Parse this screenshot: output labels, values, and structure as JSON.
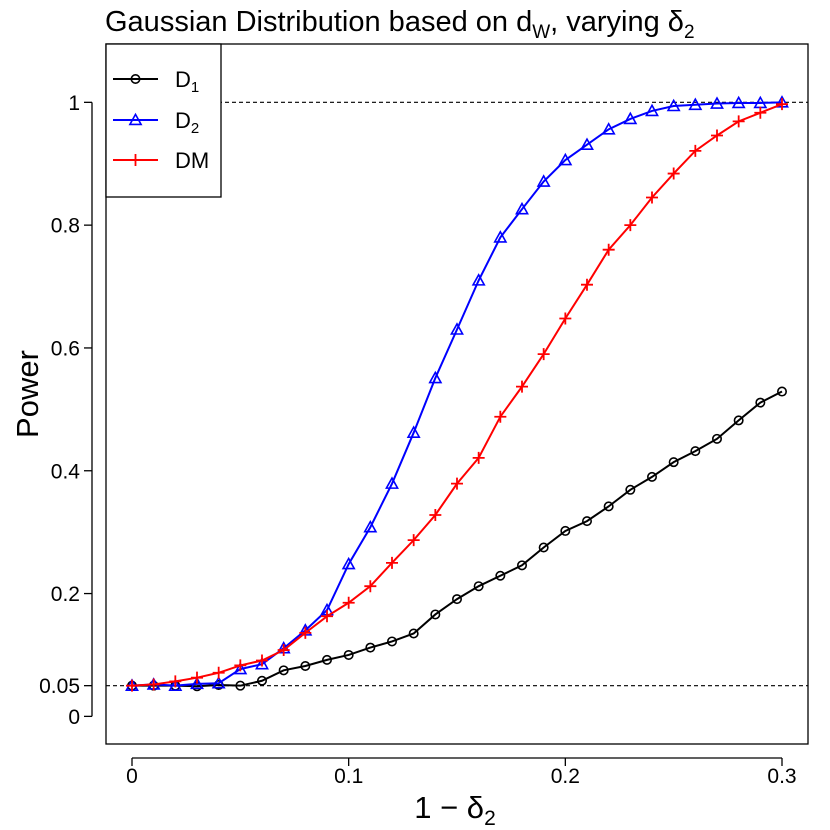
{
  "chart_data": {
    "type": "line",
    "title": {
      "main": "Gaussian Distribution based on d",
      "main_sub": "W",
      "rest": ", varying δ",
      "rest_sub": "2"
    },
    "xlabel": {
      "main": "1 − δ",
      "sub": "2"
    },
    "ylabel": "Power",
    "xlim": [
      -0.012,
      0.312
    ],
    "ylim": [
      -0.045,
      1.095
    ],
    "x_ticks": [
      0,
      0.1,
      0.2,
      0.3
    ],
    "x_tick_labels": [
      "0",
      "0.1",
      "0.2",
      "0.3"
    ],
    "y_ticks": [
      0,
      0.05,
      0.2,
      0.4,
      0.6,
      0.8,
      1
    ],
    "y_tick_labels": [
      "0",
      "0.05",
      "0.2",
      "0.4",
      "0.6",
      "0.8",
      "1"
    ],
    "reference_lines": [
      0.05,
      1
    ],
    "x": [
      0,
      0.01,
      0.02,
      0.03,
      0.04,
      0.05,
      0.06,
      0.07,
      0.08,
      0.09,
      0.1,
      0.11,
      0.12,
      0.13,
      0.14,
      0.15,
      0.16,
      0.17,
      0.18,
      0.19,
      0.2,
      0.21,
      0.22,
      0.23,
      0.24,
      0.25,
      0.26,
      0.27,
      0.28,
      0.29,
      0.3
    ],
    "series": [
      {
        "name": "D",
        "name_sub": "1",
        "color": "#000000",
        "marker": "circle",
        "values": [
          0.05,
          0.05,
          0.05,
          0.049,
          0.051,
          0.05,
          0.058,
          0.075,
          0.082,
          0.092,
          0.1,
          0.112,
          0.122,
          0.135,
          0.166,
          0.191,
          0.212,
          0.229,
          0.246,
          0.275,
          0.302,
          0.318,
          0.342,
          0.369,
          0.39,
          0.414,
          0.432,
          0.452,
          0.482,
          0.511,
          0.529
        ]
      },
      {
        "name": "D",
        "name_sub": "2",
        "color": "#0000ff",
        "marker": "triangle",
        "values": [
          0.05,
          0.052,
          0.05,
          0.053,
          0.054,
          0.077,
          0.085,
          0.111,
          0.14,
          0.173,
          0.248,
          0.308,
          0.379,
          0.462,
          0.551,
          0.63,
          0.71,
          0.78,
          0.826,
          0.871,
          0.906,
          0.931,
          0.956,
          0.973,
          0.986,
          0.994,
          0.996,
          0.998,
          0.999,
          0.999,
          1.0
        ]
      },
      {
        "name": "DM",
        "name_sub": "",
        "color": "#ff0000",
        "marker": "plus",
        "values": [
          0.05,
          0.052,
          0.057,
          0.063,
          0.071,
          0.083,
          0.091,
          0.108,
          0.136,
          0.163,
          0.185,
          0.212,
          0.25,
          0.287,
          0.328,
          0.379,
          0.421,
          0.488,
          0.537,
          0.59,
          0.648,
          0.703,
          0.76,
          0.8,
          0.845,
          0.884,
          0.921,
          0.946,
          0.969,
          0.983,
          0.997
        ]
      }
    ],
    "legend_position": "top-left"
  }
}
